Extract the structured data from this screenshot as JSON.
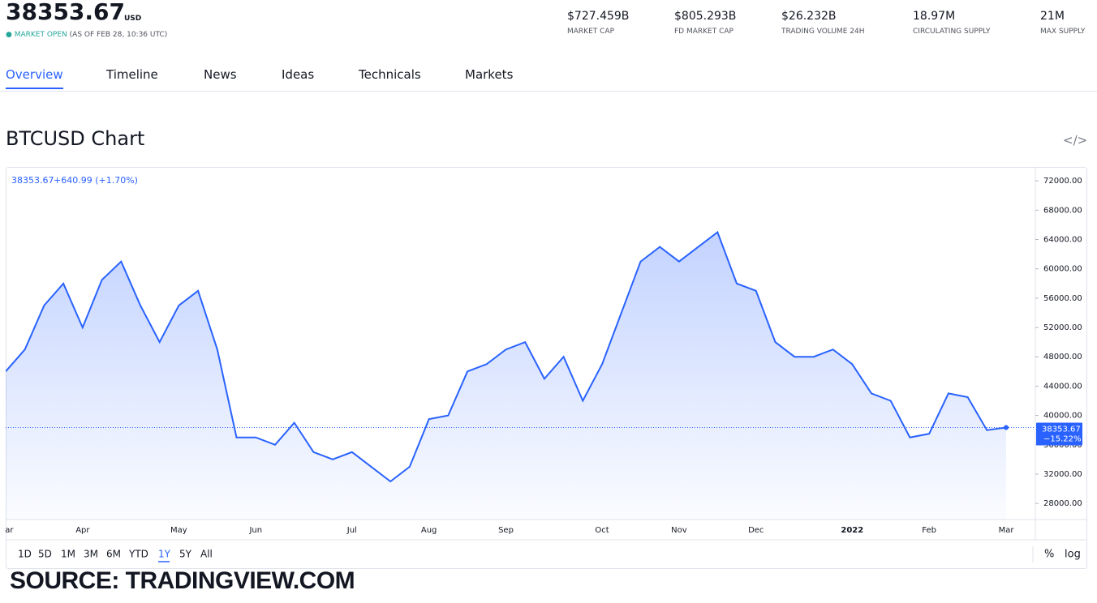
{
  "header": {
    "price": "38353.67",
    "currency": "USD",
    "status": "MARKET OPEN",
    "status_time": "(AS OF FEB 28, 10:36 UTC)",
    "stats": [
      {
        "value": "$727.459B",
        "label": "MARKET CAP"
      },
      {
        "value": "$805.293B",
        "label": "FD MARKET CAP"
      },
      {
        "value": "$26.232B",
        "label": "TRADING VOLUME 24H"
      },
      {
        "value": "18.97M",
        "label": "CIRCULATING SUPPLY"
      },
      {
        "value": "21M",
        "label": "MAX SUPPLY"
      }
    ]
  },
  "tabs": [
    "Overview",
    "Timeline",
    "News",
    "Ideas",
    "Technicals",
    "Markets"
  ],
  "section_title": "BTCUSD Chart",
  "embed_icon": "</>",
  "chart_data": {
    "type": "line",
    "legend_price": "38353.67",
    "legend_change": "+640.99 (+1.70%)",
    "categories": [
      "Mar",
      null,
      null,
      null,
      "Apr",
      null,
      null,
      null,
      null,
      "May",
      null,
      null,
      null,
      "Jun",
      null,
      null,
      null,
      null,
      "Jul",
      null,
      null,
      null,
      "Aug",
      null,
      null,
      null,
      "Sep",
      null,
      null,
      null,
      null,
      "Oct",
      null,
      null,
      null,
      "Nov",
      null,
      null,
      null,
      "Dec",
      null,
      null,
      null,
      null,
      "2022",
      null,
      null,
      null,
      "Feb",
      null,
      null,
      null,
      "Mar"
    ],
    "series": [
      {
        "name": "BTCUSD",
        "color": "#2962ff",
        "values": [
          46000,
          49000,
          55000,
          58000,
          52000,
          58500,
          61000,
          55000,
          50000,
          55000,
          57000,
          49000,
          37000,
          37000,
          36000,
          39000,
          35000,
          34000,
          35000,
          33000,
          31000,
          33000,
          39500,
          40000,
          46000,
          47000,
          49000,
          50000,
          45000,
          48000,
          42000,
          47000,
          54000,
          61000,
          63000,
          61000,
          63000,
          65000,
          58000,
          57000,
          50000,
          48000,
          48000,
          49000,
          47000,
          43000,
          42000,
          37000,
          37500,
          43000,
          42500,
          38000,
          38353.67
        ]
      }
    ],
    "last_price": 38353.67,
    "last_change": "−15.22%",
    "ylim": [
      25800,
      73900
    ],
    "yticks": [
      {
        "value": 28000,
        "label": "28000.00"
      },
      {
        "value": 32000,
        "label": "32000.00"
      },
      {
        "value": 36000,
        "label": "36000.00"
      },
      {
        "value": 40000,
        "label": "40000.00"
      },
      {
        "value": 44000,
        "label": "44000.00"
      },
      {
        "value": 48000,
        "label": "48000.00"
      },
      {
        "value": 52000,
        "label": "52000.00"
      },
      {
        "value": 56000,
        "label": "56000.00"
      },
      {
        "value": 60000,
        "label": "60000.00"
      },
      {
        "value": 64000,
        "label": "64000.00"
      },
      {
        "value": 68000,
        "label": "68000.00"
      },
      {
        "value": 72000,
        "label": "72000.00"
      }
    ],
    "ranges": [
      "1D",
      "5D",
      "1M",
      "3M",
      "6M",
      "YTD",
      "1Y",
      "5Y",
      "All"
    ],
    "active_range": "1Y",
    "scale_options": [
      "%",
      "log"
    ]
  },
  "source": "SOURCE: TRADINGVIEW.COM"
}
